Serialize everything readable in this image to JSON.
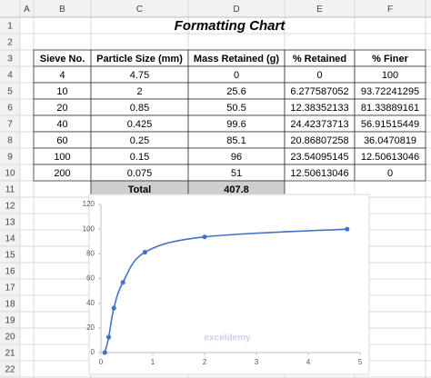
{
  "sheet": {
    "column_headers": [
      "A",
      "B",
      "C",
      "D",
      "E",
      "F"
    ],
    "row_headers": [
      1,
      2,
      3,
      4,
      5,
      6,
      7,
      8,
      9,
      10,
      11,
      12,
      13,
      14,
      15,
      16,
      17,
      18,
      19,
      20,
      21,
      22
    ],
    "title": "Formatting Chart",
    "table": {
      "header": [
        "Sieve No.",
        "Particle Size (mm)",
        "Mass Retained (g)",
        "% Retained",
        "% Finer"
      ],
      "rows": [
        [
          4,
          4.75,
          0,
          0,
          100
        ],
        [
          10,
          2,
          25.6,
          6.277587052,
          93.72241295
        ],
        [
          20,
          0.85,
          50.5,
          12.38352133,
          81.33889161
        ],
        [
          40,
          0.425,
          99.6,
          24.42373713,
          56.91515449
        ],
        [
          60,
          0.25,
          85.1,
          20.86807258,
          36.0470819
        ],
        [
          100,
          0.15,
          96,
          23.54095145,
          12.50613046
        ],
        [
          200,
          0.075,
          51,
          12.50613046,
          0
        ]
      ],
      "total": [
        "Total",
        407.8
      ]
    }
  },
  "chart_data": {
    "type": "scatter_smooth",
    "x": [
      4.75,
      2,
      0.85,
      0.425,
      0.25,
      0.15,
      0.075
    ],
    "values": [
      100,
      93.72241295,
      81.33889161,
      56.91515449,
      36.0470819,
      12.50613046,
      0
    ],
    "color": "#4472c4",
    "xlim": [
      0,
      5
    ],
    "xticks": [
      0,
      1,
      2,
      3,
      4,
      5
    ],
    "ylim": [
      0,
      120
    ],
    "yticks": [
      0,
      20,
      40,
      60,
      80,
      100,
      120
    ],
    "grid": false,
    "watermark": "exceldemy"
  }
}
